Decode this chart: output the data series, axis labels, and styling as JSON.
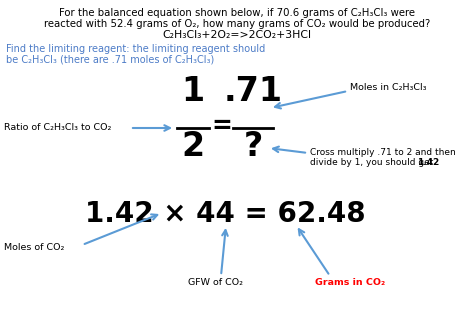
{
  "bg_color": "#ffffff",
  "text_color": "#000000",
  "blue_color": "#4d7cc7",
  "red_color": "#ff0000",
  "arrow_color": "#5b9bd5",
  "top_line1": "For the balanced equation shown below, if 70.6 grams of C₂H₃Cl₃ were",
  "top_line2": "reacted with 52.4 grams of O₂, how many grams of CO₂ would be produced?",
  "top_line3": "C₂H₃Cl₃+2O₂=>2CO₂+3HCl",
  "blue_line1": "Find the limiting reagent: the limiting reagent should",
  "blue_line2": "be C₂H₃Cl₃ (there are .71 moles of C₂H₃Cl₃)",
  "ratio_label": "Ratio of C₂H₃Cl₃ to CO₂",
  "moles_c2h3cl3_label": "Moles in C₂H₃Cl₃",
  "cross_line1": "Cross multiply .71 to 2 and then",
  "cross_line2": "divide by 1, you should get ",
  "cross_bold": "1.42",
  "moles_co2_label": "Moles of CO₂",
  "big_eq": "1.42 × 44 = 62.48",
  "gfw_label": "GFW of CO₂",
  "grams_label": "Grams in CO₂",
  "frac_num1": "1",
  "frac_den1": "2",
  "frac_num2": ".71",
  "frac_den2": "?"
}
